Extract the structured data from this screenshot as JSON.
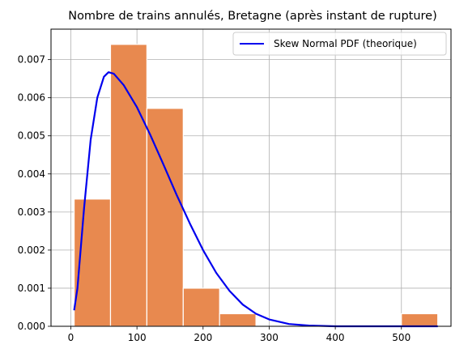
{
  "chart_data": {
    "type": "bar",
    "title": "Nombre de trains annulés, Bretagne (après instant de rupture)",
    "xlabel": "",
    "ylabel": "",
    "xlim": [
      -30,
      575
    ],
    "ylim": [
      0,
      0.0078
    ],
    "grid": true,
    "legend_position": "top-right",
    "xticks": [
      0,
      100,
      200,
      300,
      400,
      500
    ],
    "yticks": [
      0.0,
      0.001,
      0.002,
      0.003,
      0.004,
      0.005,
      0.006,
      0.007
    ],
    "ytick_labels": [
      "0.000",
      "0.001",
      "0.002",
      "0.003",
      "0.004",
      "0.005",
      "0.006",
      "0.007"
    ],
    "histogram": {
      "bin_edges": [
        5,
        60,
        115,
        170,
        225,
        280,
        335,
        390,
        445,
        500,
        555
      ],
      "densities": [
        0.00334,
        0.0074,
        0.00572,
        0.001,
        0.00033,
        0,
        0,
        0,
        0,
        0.00033
      ],
      "color": "#e8894f",
      "edge_color": "#ffffff"
    },
    "series": [
      {
        "name": "Skew Normal PDF (theorique)",
        "type": "line",
        "color": "#0000ee",
        "x": [
          5,
          10,
          20,
          30,
          40,
          50,
          57,
          65,
          80,
          100,
          120,
          140,
          160,
          180,
          200,
          220,
          240,
          260,
          280,
          300,
          330,
          360,
          400,
          450,
          500,
          555
        ],
        "y": [
          0.00042,
          0.001,
          0.0031,
          0.0049,
          0.006,
          0.00655,
          0.00667,
          0.00663,
          0.00633,
          0.00575,
          0.00503,
          0.00425,
          0.00345,
          0.0027,
          0.002,
          0.0014,
          0.00093,
          0.00057,
          0.00033,
          0.00018,
          6e-05,
          2e-05,
          0.0,
          0.0,
          0.0,
          0.0
        ]
      }
    ]
  }
}
